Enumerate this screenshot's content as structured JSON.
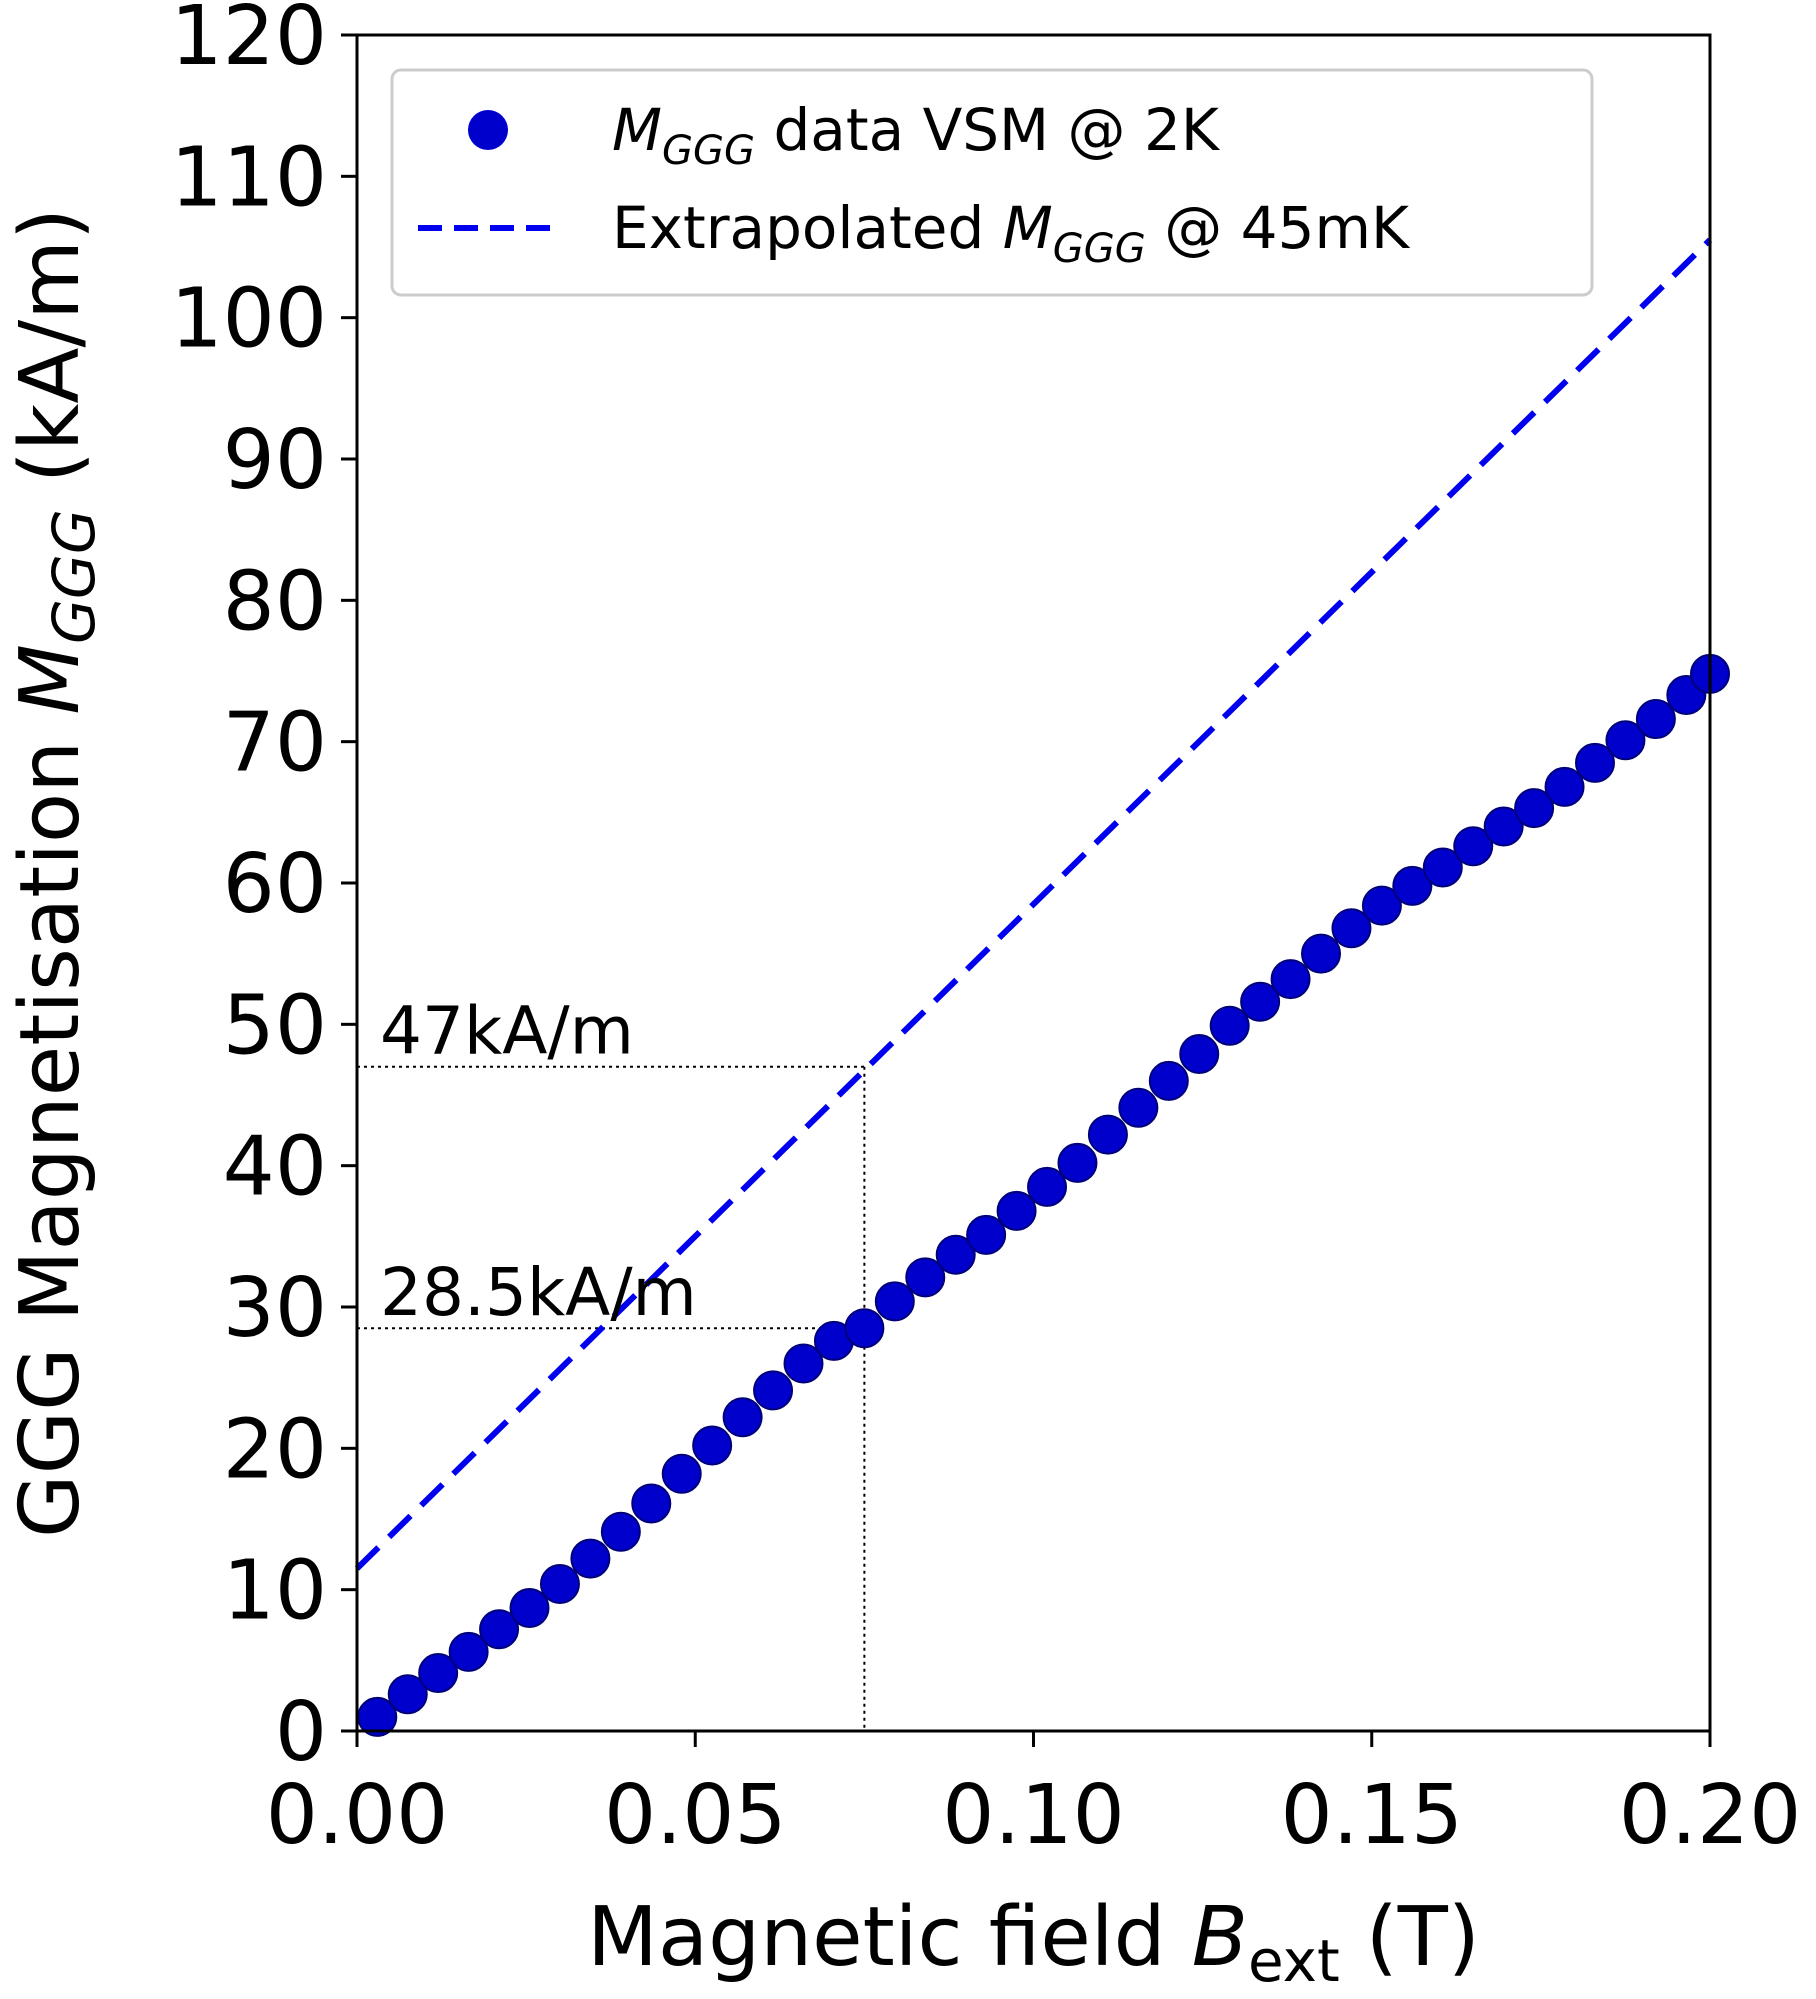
{
  "chart_data": {
    "type": "line",
    "xlabel": {
      "main": "Magnetic field ",
      "symbol": "B",
      "subscript": "ext",
      "unit": " (T)"
    },
    "ylabel": {
      "main": "GGG Magnetisation ",
      "symbol": "M",
      "subscript": "GGG",
      "unit": " (kA/m)"
    },
    "xlim": [
      0,
      0.2
    ],
    "ylim": [
      0,
      120
    ],
    "xticks": [
      "0.00",
      "0.05",
      "0.10",
      "0.15",
      "0.20"
    ],
    "xtick_values": [
      0,
      0.05,
      0.1,
      0.15,
      0.2
    ],
    "yticks": [
      "0",
      "10",
      "20",
      "30",
      "40",
      "50",
      "60",
      "70",
      "80",
      "90",
      "100",
      "110",
      "120"
    ],
    "ytick_values": [
      0,
      10,
      20,
      30,
      40,
      50,
      60,
      70,
      80,
      90,
      100,
      110,
      120
    ],
    "grid": false,
    "legend_position": "top",
    "series": [
      {
        "name": "data VSM @ 2K",
        "name_symbol": "M",
        "name_subscript": "GGG",
        "style": "scatter",
        "color": "#0000cc",
        "x": [
          0.003,
          0.0075,
          0.012,
          0.0165,
          0.021,
          0.0255,
          0.03,
          0.0345,
          0.039,
          0.0435,
          0.048,
          0.0525,
          0.057,
          0.0615,
          0.066,
          0.0705,
          0.075,
          0.0795,
          0.084,
          0.0885,
          0.093,
          0.0975,
          0.102,
          0.1065,
          0.111,
          0.1155,
          0.12,
          0.1245,
          0.129,
          0.1335,
          0.138,
          0.1425,
          0.147,
          0.1515,
          0.156,
          0.1605,
          0.165,
          0.1695,
          0.174,
          0.1785,
          0.183,
          0.1875,
          0.192,
          0.1965,
          0.2
        ],
        "y": [
          1.0,
          2.6,
          4.1,
          5.6,
          7.2,
          8.7,
          10.4,
          12.2,
          14.1,
          16.1,
          18.2,
          20.2,
          22.2,
          24.1,
          26.0,
          27.6,
          28.5,
          30.4,
          32.1,
          33.7,
          35.1,
          36.8,
          38.5,
          40.2,
          42.2,
          44.1,
          46.0,
          47.9,
          49.9,
          51.6,
          53.2,
          55.0,
          56.8,
          58.4,
          59.8,
          61.1,
          62.6,
          64.0,
          65.3,
          66.8,
          68.5,
          70.1,
          71.6,
          73.3,
          74.8
        ]
      },
      {
        "name": "Extrapolated ",
        "name_symbol": "M",
        "name_subscript": "GGG",
        "name_suffix": " @ 45mK",
        "style": "dashed",
        "color": "#0000ee",
        "x": [
          0,
          0.2
        ],
        "y": [
          11.5,
          105.5
        ]
      }
    ],
    "annotations": [
      {
        "text": "47kA/m",
        "x": 0.075,
        "y": 47
      },
      {
        "text": "28.5kA/m",
        "x": 0.075,
        "y": 28.5
      }
    ]
  }
}
